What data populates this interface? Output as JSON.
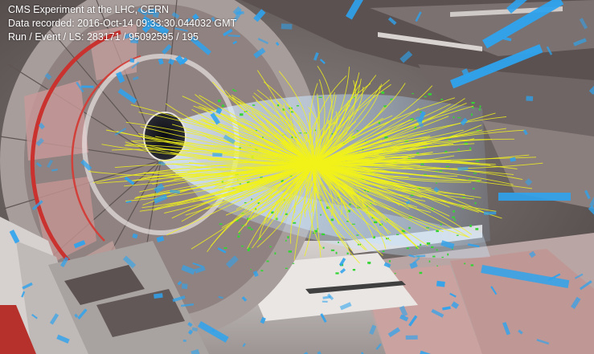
{
  "overlay": {
    "line1": "CMS Experiment at the LHC, CERN",
    "line2": "Data recorded: 2016-Oct-14 09:33:30.044032 GMT",
    "line3": "Run / Event / LS: 283171 / 95092595 / 195"
  },
  "colors": {
    "tracks": "#f2f21a",
    "hits": "#35d435",
    "calo_towers": "#2ea3ee",
    "beam_glow": "#cfe8ff",
    "detector_red": "#c9322e",
    "detector_gray": "#b9b3b1"
  }
}
